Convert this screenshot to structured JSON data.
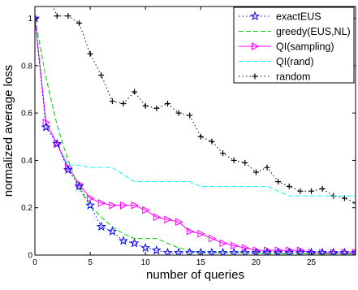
{
  "chart_data": {
    "type": "line",
    "title": "",
    "xlabel": "number of queries",
    "ylabel": "normalized average loss",
    "xlim": [
      0,
      29
    ],
    "ylim": [
      0,
      1.05
    ],
    "x_ticks": [
      0,
      5,
      10,
      15,
      20,
      25
    ],
    "y_ticks": [
      0,
      0.2,
      0.4,
      0.6,
      0.8,
      1
    ],
    "x_tick_labels": [
      "0",
      "5",
      "10",
      "15",
      "20",
      "25"
    ],
    "y_tick_labels": [
      "0",
      "0.2",
      "0.4",
      "0.6",
      "0.8",
      "1"
    ],
    "grid": false,
    "legend_position": "top-right",
    "series": [
      {
        "name": "exactEUS",
        "color": "#0000ff",
        "style": "dotted",
        "marker": "star",
        "x": [
          0,
          1,
          2,
          3,
          4,
          5,
          6,
          7,
          8,
          9,
          10,
          11,
          12,
          13,
          14,
          15,
          16,
          17,
          18,
          19,
          20,
          21,
          22,
          23,
          24,
          25,
          26,
          27,
          28,
          29
        ],
        "y": [
          1.0,
          0.54,
          0.47,
          0.36,
          0.29,
          0.21,
          0.12,
          0.1,
          0.06,
          0.05,
          0.03,
          0.02,
          0.01,
          0.01,
          0.01,
          0.01,
          0.01,
          0.01,
          0.01,
          0.01,
          0.01,
          0.01,
          0.01,
          0.01,
          0.01,
          0.01,
          0.01,
          0.01,
          0.01,
          0.01
        ]
      },
      {
        "name": "greedy(EUS,NL)",
        "color": "#00cc00",
        "style": "dashed",
        "marker": "none",
        "x": [
          0,
          1,
          2,
          3,
          4,
          5,
          6,
          7,
          8,
          9,
          10,
          11,
          12,
          13,
          14,
          15,
          16,
          17,
          18,
          19,
          20,
          21,
          22,
          23,
          24,
          25,
          26,
          27,
          28,
          29
        ],
        "y": [
          1.0,
          0.75,
          0.55,
          0.4,
          0.28,
          0.21,
          0.16,
          0.12,
          0.09,
          0.07,
          0.07,
          0.07,
          0.05,
          0.03,
          0.02,
          0.01,
          0.01,
          0.01,
          0.01,
          0.01,
          0.01,
          0.005,
          0.005,
          0.005,
          0.005,
          0.005,
          0.005,
          0.005,
          0.005,
          0.005
        ]
      },
      {
        "name": "QI(sampling)",
        "color": "#ff00ff",
        "style": "solid",
        "marker": "triangle-right",
        "x": [
          0,
          1,
          2,
          3,
          4,
          5,
          6,
          7,
          8,
          9,
          10,
          11,
          12,
          13,
          14,
          15,
          16,
          17,
          18,
          19,
          20,
          21,
          22,
          23,
          24,
          25,
          26,
          27,
          28,
          29
        ],
        "y": [
          1.0,
          0.56,
          0.47,
          0.37,
          0.3,
          0.24,
          0.22,
          0.21,
          0.21,
          0.21,
          0.19,
          0.16,
          0.15,
          0.14,
          0.1,
          0.09,
          0.07,
          0.05,
          0.04,
          0.03,
          0.02,
          0.02,
          0.02,
          0.02,
          0.02,
          0.01,
          0.01,
          0.01,
          0.01,
          0.01
        ]
      },
      {
        "name": "QI(rand)",
        "color": "#00ffff",
        "style": "dashed",
        "marker": "none",
        "x": [
          0,
          1,
          2,
          3,
          4,
          5,
          6,
          7,
          8,
          9,
          10,
          11,
          12,
          13,
          14,
          15,
          16,
          17,
          18,
          19,
          20,
          21,
          22,
          23,
          24,
          25,
          26,
          27,
          28,
          29
        ],
        "y": [
          1.0,
          0.56,
          0.47,
          0.38,
          0.38,
          0.37,
          0.37,
          0.37,
          0.34,
          0.31,
          0.31,
          0.31,
          0.31,
          0.31,
          0.31,
          0.29,
          0.29,
          0.29,
          0.29,
          0.29,
          0.29,
          0.29,
          0.27,
          0.25,
          0.25,
          0.25,
          0.25,
          0.25,
          0.25,
          0.25
        ]
      },
      {
        "name": "random",
        "color": "#000000",
        "style": "dotted",
        "marker": "plus",
        "x": [
          0,
          1,
          2,
          3,
          4,
          5,
          6,
          7,
          8,
          9,
          10,
          11,
          12,
          13,
          14,
          15,
          16,
          17,
          18,
          19,
          20,
          21,
          22,
          23,
          24,
          25,
          26,
          27,
          28,
          29
        ],
        "y": [
          1.19,
          1.12,
          1.01,
          1.01,
          0.98,
          0.85,
          0.76,
          0.65,
          0.64,
          0.69,
          0.63,
          0.62,
          0.64,
          0.6,
          0.59,
          0.5,
          0.48,
          0.43,
          0.4,
          0.39,
          0.35,
          0.37,
          0.31,
          0.29,
          0.27,
          0.27,
          0.28,
          0.25,
          0.24,
          0.22
        ]
      }
    ]
  }
}
